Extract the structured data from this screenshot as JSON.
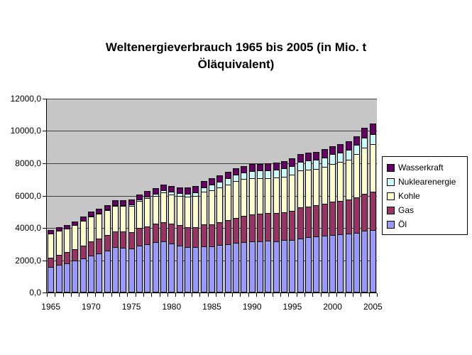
{
  "header": {
    "title_lines": [
      "Weltenergieverbrauch 1965 bis 2005 (in Mio. t",
      "Öläquivalent)"
    ]
  },
  "chart_data": {
    "type": "bar",
    "stacked": true,
    "title": "Weltenergieverbrauch 1965 bis 2005 (in Mio. t Öläquivalent)",
    "unit": "Mio. t Öläquivalent",
    "plot_background": "#c6c6c6",
    "grid": true,
    "categories": [
      1965,
      1966,
      1967,
      1968,
      1969,
      1970,
      1971,
      1972,
      1973,
      1974,
      1975,
      1976,
      1977,
      1978,
      1979,
      1980,
      1981,
      1982,
      1983,
      1984,
      1985,
      1986,
      1987,
      1988,
      1989,
      1990,
      1991,
      1992,
      1993,
      1994,
      1995,
      1996,
      1997,
      1998,
      1999,
      2000,
      2001,
      2002,
      2003,
      2004,
      2005
    ],
    "series": [
      {
        "name": "Öl",
        "color": "#9999FF",
        "values": [
          1530,
          1651,
          1766,
          1913,
          2072,
          2255,
          2377,
          2556,
          2754,
          2710,
          2678,
          2852,
          2944,
          3055,
          3103,
          2972,
          2868,
          2776,
          2761,
          2815,
          2801,
          2893,
          2949,
          3039,
          3088,
          3136,
          3134,
          3165,
          3133,
          3192,
          3229,
          3314,
          3395,
          3415,
          3481,
          3519,
          3553,
          3585,
          3651,
          3767,
          3837
        ]
      },
      {
        "name": "Gas",
        "color": "#993366",
        "values": [
          587,
          632,
          677,
          732,
          798,
          863,
          927,
          967,
          1004,
          1020,
          1025,
          1095,
          1117,
          1148,
          1221,
          1237,
          1246,
          1240,
          1253,
          1359,
          1395,
          1407,
          1484,
          1554,
          1611,
          1663,
          1698,
          1710,
          1735,
          1742,
          1798,
          1901,
          1896,
          1938,
          1985,
          2066,
          2091,
          2139,
          2197,
          2283,
          2360
        ]
      },
      {
        "name": "Kohle",
        "color": "#FFFFCC",
        "values": [
          1486,
          1489,
          1448,
          1478,
          1516,
          1553,
          1538,
          1540,
          1579,
          1592,
          1613,
          1681,
          1726,
          1744,
          1834,
          1814,
          1826,
          1863,
          1916,
          2011,
          2107,
          2143,
          2211,
          2261,
          2272,
          2220,
          2196,
          2173,
          2187,
          2201,
          2218,
          2283,
          2284,
          2266,
          2287,
          2337,
          2392,
          2472,
          2667,
          2858,
          2930
        ]
      },
      {
        "name": "Nuklearenergie",
        "color": "#CCFFFF",
        "values": [
          6,
          9,
          11,
          13,
          15,
          18,
          25,
          34,
          45,
          59,
          81,
          97,
          121,
          135,
          138,
          161,
          189,
          205,
          234,
          281,
          335,
          362,
          388,
          414,
          426,
          453,
          469,
          475,
          492,
          505,
          525,
          545,
          541,
          551,
          571,
          584,
          601,
          611,
          598,
          624,
          627
        ]
      },
      {
        "name": "Wasserkraft",
        "color": "#660066",
        "values": [
          208,
          218,
          222,
          232,
          245,
          258,
          268,
          277,
          279,
          298,
          303,
          310,
          312,
          330,
          339,
          346,
          351,
          360,
          372,
          380,
          381,
          385,
          389,
          397,
          400,
          420,
          430,
          432,
          454,
          460,
          480,
          486,
          494,
          497,
          499,
          508,
          505,
          514,
          516,
          634,
          668
        ]
      }
    ],
    "legend": {
      "position": "right",
      "order_top_to_bottom": [
        "Wasserkraft",
        "Nuklearenergie",
        "Kohle",
        "Gas",
        "Öl"
      ]
    },
    "x_axis": {
      "tick_labels": [
        "1965",
        "1970",
        "1975",
        "1980",
        "1985",
        "1990",
        "1995",
        "2000",
        "2005"
      ]
    },
    "y_axis": {
      "min": 0,
      "max": 12000,
      "step": 2000,
      "tick_labels_bottom_to_top": [
        "0,0",
        "2000,0",
        "4000,0",
        "6000,0",
        "8000,0",
        "10000,0",
        "12000,0"
      ]
    }
  }
}
